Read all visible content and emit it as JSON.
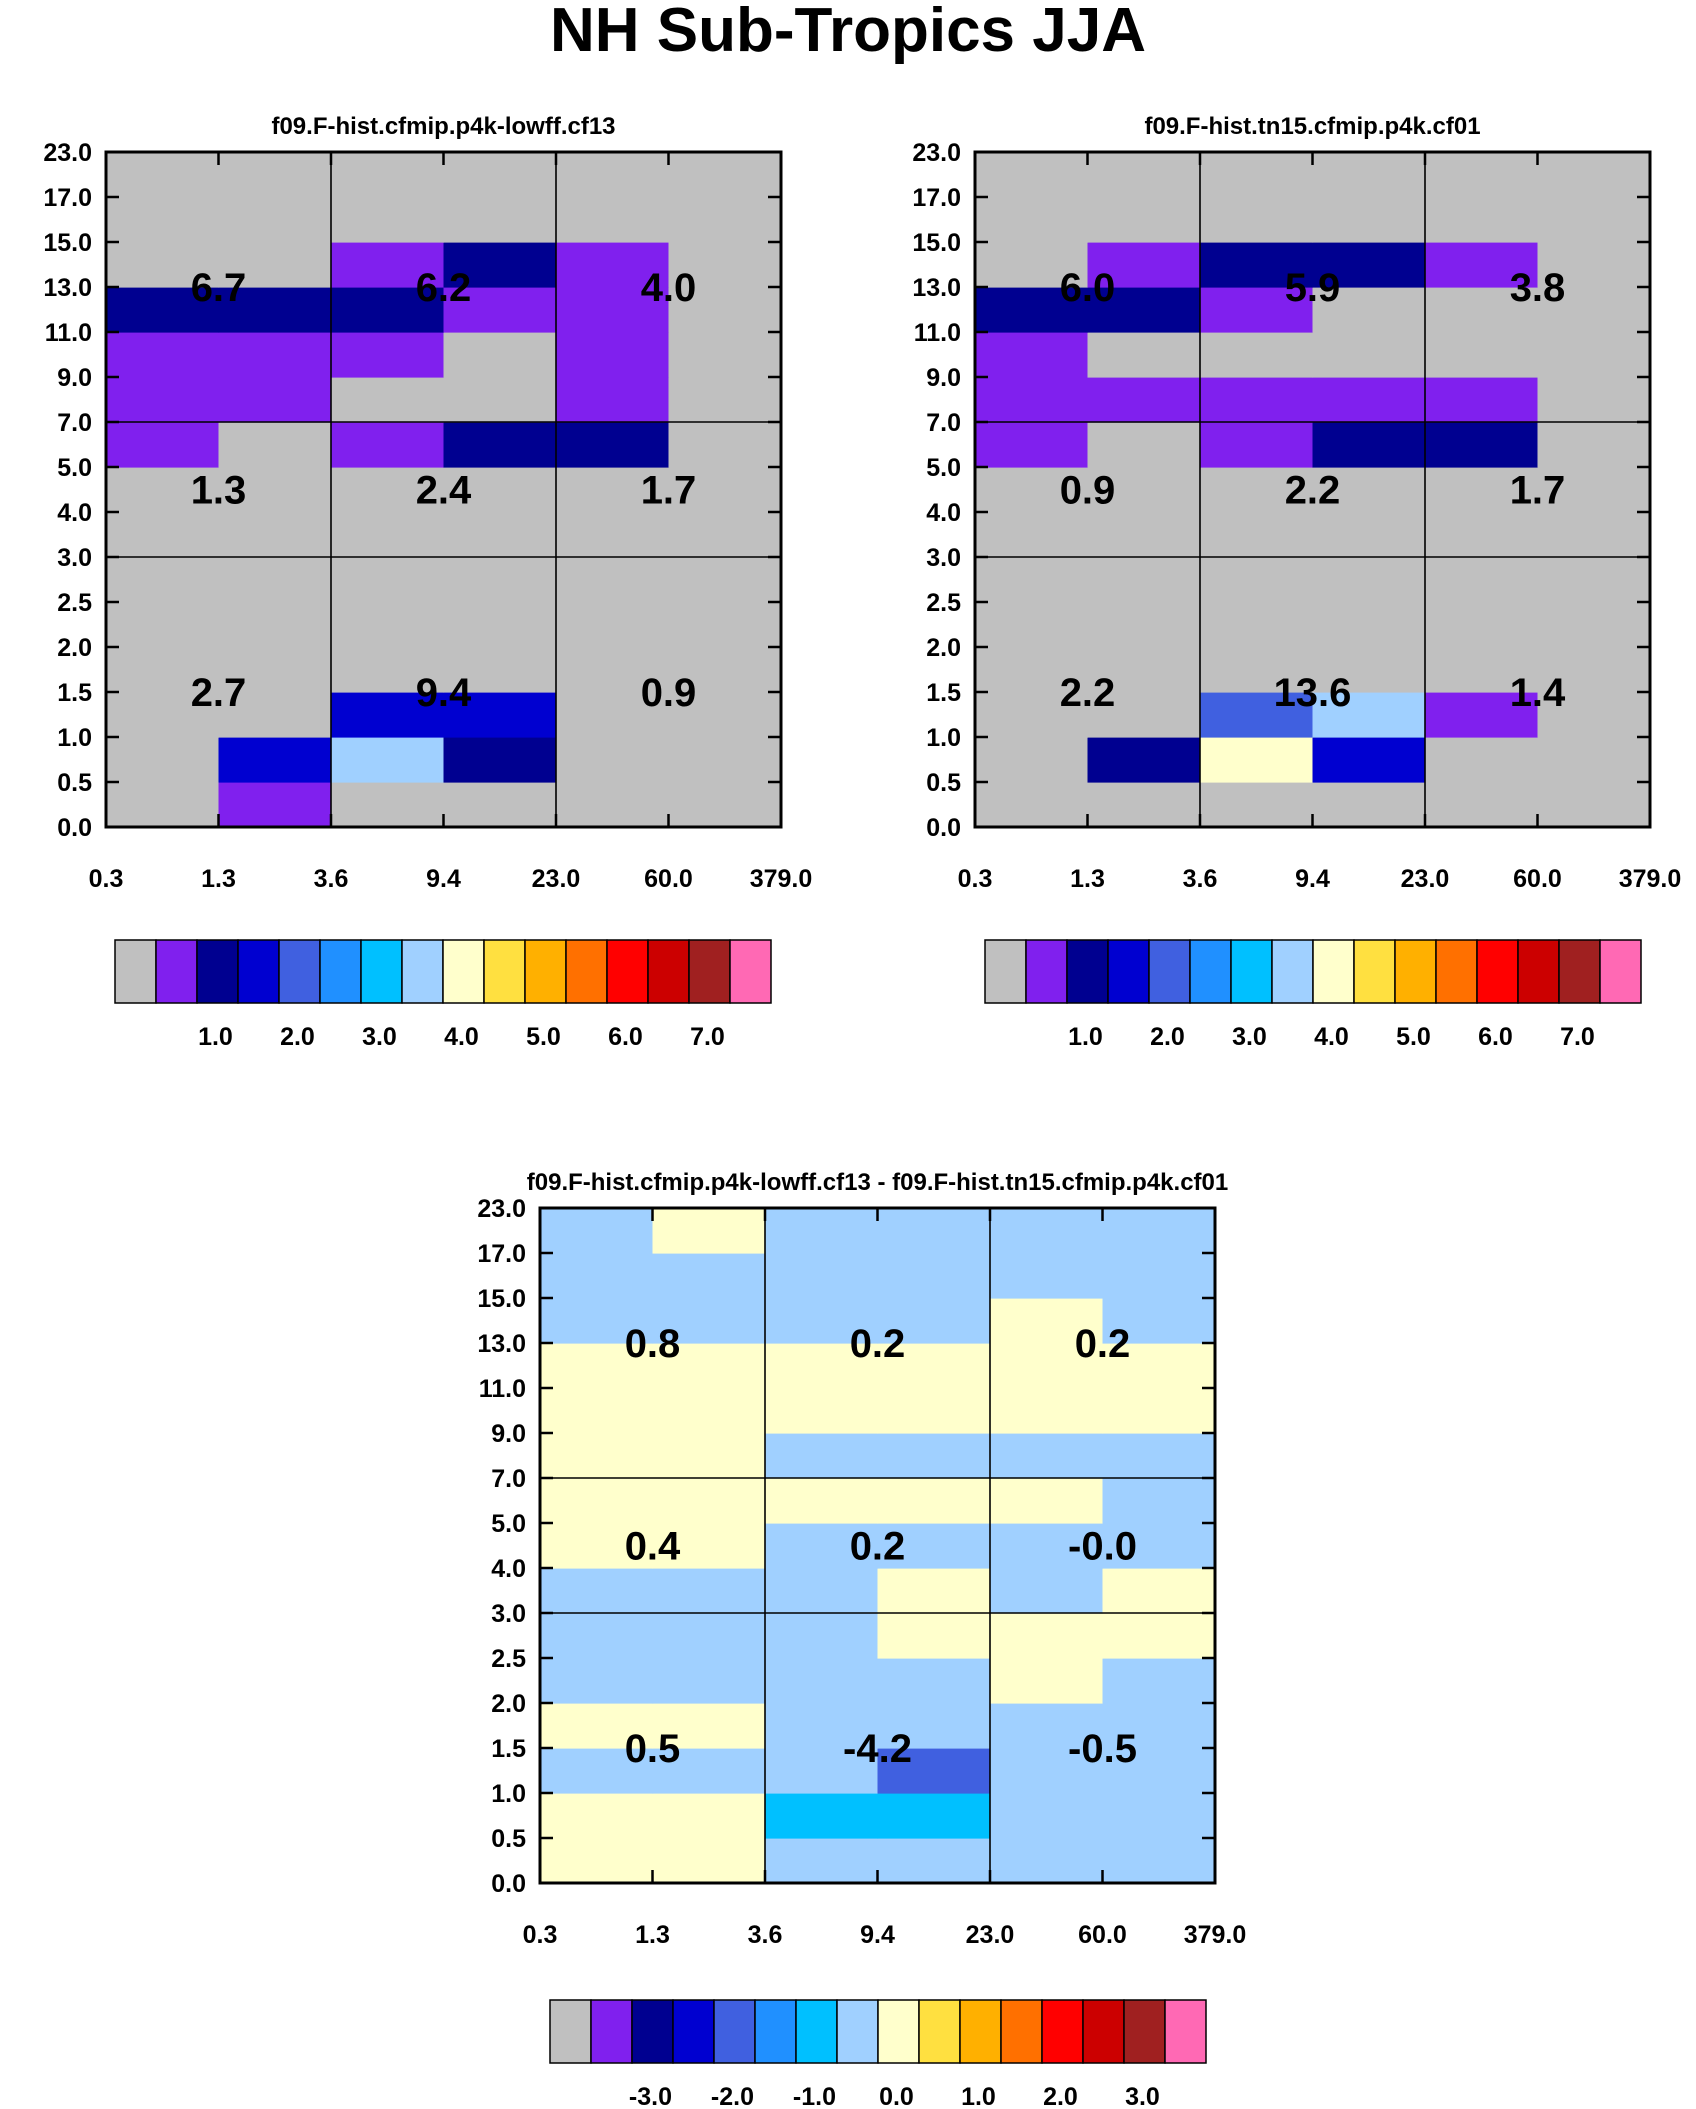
{
  "title": "NH Sub-Tropics JJA",
  "chart_data": {
    "type": "heatmap",
    "x_ticks": [
      "0.3",
      "1.3",
      "3.6",
      "9.4",
      "23.0",
      "60.0",
      "379.0"
    ],
    "y_ticks": [
      "0.0",
      "0.5",
      "1.0",
      "1.5",
      "2.0",
      "2.5",
      "3.0",
      "4.0",
      "5.0",
      "7.0",
      "9.0",
      "11.0",
      "13.0",
      "15.0",
      "17.0",
      "23.0"
    ],
    "colorbar_colors": [
      "#c0c0c0",
      "#8020ee",
      "#000090",
      "#0000d0",
      "#4060e0",
      "#2090ff",
      "#00c0ff",
      "#a0d0ff",
      "#ffffcc",
      "#ffe040",
      "#ffb000",
      "#ff7000",
      "#ff0000",
      "#cc0000",
      "#a02020",
      "#ff69b4"
    ],
    "panels": [
      {
        "title": "f09.F-hist.cfmip.p4k-lowff.cf13",
        "rows": [
          [
            0,
            1,
            0,
            0,
            0,
            0
          ],
          [
            0,
            3,
            7,
            2,
            0,
            0
          ],
          [
            0,
            0,
            3,
            3,
            0,
            0
          ],
          [
            0,
            0,
            0,
            0,
            0,
            0
          ],
          [
            0,
            0,
            0,
            0,
            0,
            0
          ],
          [
            0,
            0,
            0,
            0,
            0,
            0
          ],
          [
            0,
            0,
            0,
            0,
            0,
            0
          ],
          [
            0,
            0,
            0,
            0,
            0,
            0
          ],
          [
            1,
            0,
            1,
            2,
            2,
            0
          ],
          [
            1,
            1,
            0,
            0,
            1,
            0
          ],
          [
            1,
            1,
            1,
            0,
            1,
            0
          ],
          [
            2,
            2,
            2,
            1,
            1,
            0
          ],
          [
            0,
            0,
            1,
            2,
            1,
            0
          ],
          [
            0,
            0,
            0,
            0,
            0,
            0
          ],
          [
            0,
            0,
            0,
            0,
            0,
            0
          ]
        ],
        "cell_values": [
          [
            "6.7",
            "6.2",
            "4.0"
          ],
          [
            "1.3",
            "2.4",
            "1.7"
          ],
          [
            "2.7",
            "9.4",
            "0.9"
          ]
        ],
        "colorbar_labels": [
          "1.0",
          "2.0",
          "3.0",
          "4.0",
          "5.0",
          "6.0",
          "7.0"
        ]
      },
      {
        "title": "f09.F-hist.tn15.cfmip.p4k.cf01",
        "rows": [
          [
            0,
            0,
            0,
            0,
            0,
            0
          ],
          [
            0,
            2,
            8,
            3,
            0,
            0
          ],
          [
            0,
            0,
            4,
            7,
            1,
            0
          ],
          [
            0,
            0,
            0,
            0,
            0,
            0
          ],
          [
            0,
            0,
            0,
            0,
            0,
            0
          ],
          [
            0,
            0,
            0,
            0,
            0,
            0
          ],
          [
            0,
            0,
            0,
            0,
            0,
            0
          ],
          [
            0,
            0,
            0,
            0,
            0,
            0
          ],
          [
            1,
            0,
            1,
            2,
            2,
            0
          ],
          [
            1,
            1,
            1,
            1,
            1,
            0
          ],
          [
            1,
            0,
            0,
            0,
            0,
            0
          ],
          [
            2,
            2,
            1,
            0,
            0,
            0
          ],
          [
            0,
            1,
            2,
            2,
            1,
            0
          ],
          [
            0,
            0,
            0,
            0,
            0,
            0
          ],
          [
            0,
            0,
            0,
            0,
            0,
            0
          ]
        ],
        "cell_values": [
          [
            "6.0",
            "5.9",
            "3.8"
          ],
          [
            "0.9",
            "2.2",
            "1.7"
          ],
          [
            "2.2",
            "13.6",
            "1.4"
          ]
        ],
        "colorbar_labels": [
          "1.0",
          "2.0",
          "3.0",
          "4.0",
          "5.0",
          "6.0",
          "7.0"
        ]
      },
      {
        "title": "f09.F-hist.cfmip.p4k-lowff.cf13 - f09.F-hist.tn15.cfmip.p4k.cf01",
        "rows": [
          [
            8,
            8,
            7,
            7,
            7,
            7
          ],
          [
            8,
            8,
            6,
            6,
            7,
            7
          ],
          [
            7,
            7,
            7,
            4,
            7,
            7
          ],
          [
            8,
            8,
            7,
            7,
            7,
            7
          ],
          [
            7,
            7,
            7,
            7,
            8,
            7
          ],
          [
            7,
            7,
            7,
            8,
            8,
            8
          ],
          [
            7,
            7,
            7,
            8,
            7,
            8
          ],
          [
            8,
            8,
            7,
            7,
            7,
            7
          ],
          [
            8,
            8,
            8,
            8,
            8,
            7
          ],
          [
            8,
            8,
            7,
            7,
            7,
            7
          ],
          [
            8,
            8,
            8,
            8,
            8,
            8
          ],
          [
            8,
            8,
            8,
            8,
            8,
            8
          ],
          [
            7,
            7,
            7,
            7,
            8,
            7
          ],
          [
            7,
            7,
            7,
            7,
            7,
            7
          ],
          [
            7,
            8,
            7,
            7,
            7,
            7
          ]
        ],
        "cell_values": [
          [
            "0.8",
            "0.2",
            "0.2"
          ],
          [
            "0.4",
            "0.2",
            "-0.0"
          ],
          [
            "0.5",
            "-4.2",
            "-0.5"
          ]
        ],
        "colorbar_labels": [
          "-3.0",
          "-2.0",
          "-1.0",
          "0.0",
          "1.0",
          "2.0",
          "3.0"
        ]
      }
    ]
  }
}
